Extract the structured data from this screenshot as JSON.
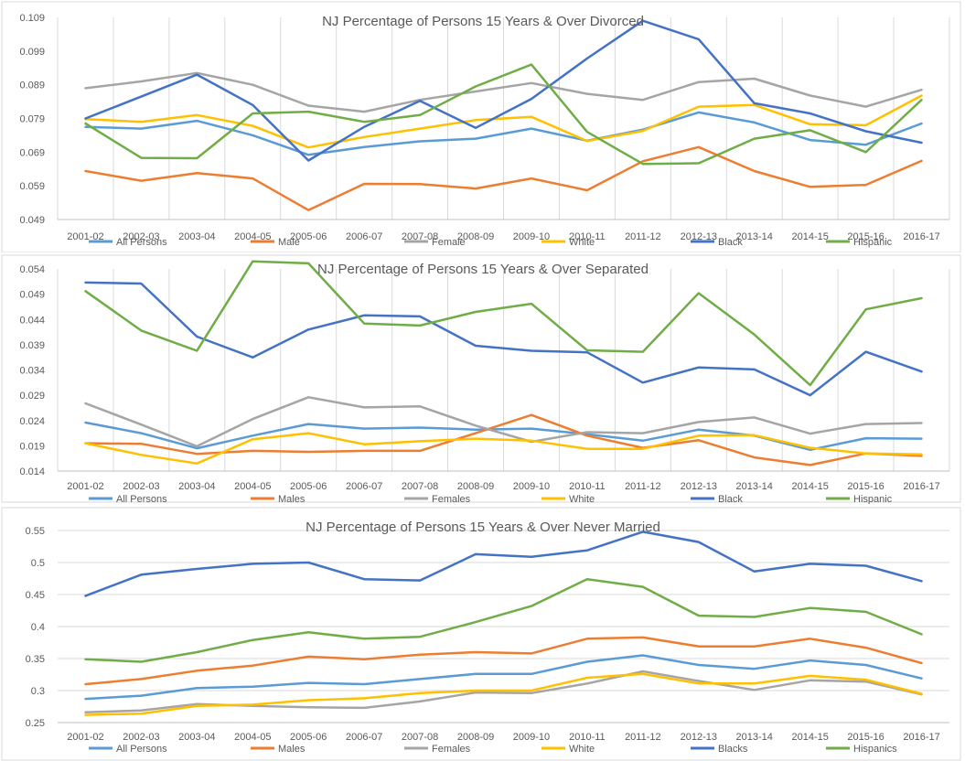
{
  "chart_data": [
    {
      "type": "line",
      "title": "NJ Percentage of Persons 15 Years & Over Divorced",
      "categories": [
        "2001-02",
        "2002-03",
        "2003-04",
        "2004-05",
        "2005-06",
        "2006-07",
        "2007-08",
        "2008-09",
        "2009-10",
        "2010-11",
        "2011-12",
        "2012-13",
        "2013-14",
        "2014-15",
        "2015-16",
        "2016-17"
      ],
      "y_ticks": [
        "0.049",
        "0.059",
        "0.069",
        "0.079",
        "0.089",
        "0.099",
        "0.109"
      ],
      "ylim": [
        0.049,
        0.109
      ],
      "grid": "vertical",
      "legend_position": "bottom",
      "series": [
        {
          "name": "All Persons",
          "color": "#5B9BD5",
          "values": [
            0.0765,
            0.076,
            0.0783,
            0.074,
            0.0682,
            0.0705,
            0.0722,
            0.073,
            0.076,
            0.0724,
            0.0757,
            0.0808,
            0.0778,
            0.0726,
            0.0712,
            0.0775
          ]
        },
        {
          "name": "Male",
          "color": "#ED7D31",
          "values": [
            0.0634,
            0.0605,
            0.0628,
            0.0612,
            0.0518,
            0.0596,
            0.0595,
            0.0582,
            0.0612,
            0.0577,
            0.0663,
            0.0705,
            0.0634,
            0.0587,
            0.0593,
            0.0664
          ]
        },
        {
          "name": "Female",
          "color": "#A5A5A5",
          "values": [
            0.088,
            0.09,
            0.0925,
            0.089,
            0.0828,
            0.081,
            0.0845,
            0.087,
            0.0895,
            0.0863,
            0.0845,
            0.0898,
            0.0908,
            0.0858,
            0.0825,
            0.0875
          ]
        },
        {
          "name": "White",
          "color": "#FFC000",
          "values": [
            0.0788,
            0.078,
            0.08,
            0.0768,
            0.0704,
            0.0735,
            0.076,
            0.0785,
            0.0795,
            0.0723,
            0.0753,
            0.0825,
            0.083,
            0.0773,
            0.077,
            0.0858
          ]
        },
        {
          "name": "Black",
          "color": "#4472C4",
          "values": [
            0.079,
            0.0855,
            0.092,
            0.083,
            0.0665,
            0.0765,
            0.0842,
            0.0762,
            0.0848,
            0.0968,
            0.108,
            0.1025,
            0.0835,
            0.0805,
            0.0752,
            0.0718
          ]
        },
        {
          "name": "Hispanic",
          "color": "#70AD47",
          "values": [
            0.0775,
            0.0673,
            0.0672,
            0.0805,
            0.081,
            0.078,
            0.08,
            0.0885,
            0.095,
            0.075,
            0.0655,
            0.0657,
            0.073,
            0.0755,
            0.069,
            0.0845
          ]
        }
      ]
    },
    {
      "type": "line",
      "title": "NJ Percentage of Persons 15 Years & Over Separated",
      "categories": [
        "2001-02",
        "2002-03",
        "2003-04",
        "2004-05",
        "2005-06",
        "2006-07",
        "2007-08",
        "2008-09",
        "2009-10",
        "2010-11",
        "2011-12",
        "2012-13",
        "2013-14",
        "2014-15",
        "2015-16",
        "2016-17"
      ],
      "y_ticks": [
        "0.014",
        "0.019",
        "0.024",
        "0.029",
        "0.034",
        "0.039",
        "0.044",
        "0.049",
        "0.054"
      ],
      "ylim": [
        0.014,
        0.054
      ],
      "grid": "vertical",
      "legend_position": "bottom",
      "series": [
        {
          "name": "All Persons",
          "color": "#5B9BD5",
          "values": [
            0.0236,
            0.0215,
            0.0185,
            0.021,
            0.0233,
            0.0224,
            0.0226,
            0.0222,
            0.0224,
            0.0213,
            0.02,
            0.0222,
            0.021,
            0.0182,
            0.0205,
            0.0204
          ]
        },
        {
          "name": "Males",
          "color": "#ED7D31",
          "values": [
            0.0195,
            0.0194,
            0.0174,
            0.018,
            0.0178,
            0.018,
            0.018,
            0.0215,
            0.0251,
            0.021,
            0.0186,
            0.0201,
            0.0167,
            0.0152,
            0.0175,
            0.017
          ]
        },
        {
          "name": "Females",
          "color": "#A5A5A5",
          "values": [
            0.0274,
            0.0232,
            0.0189,
            0.0243,
            0.0286,
            0.0266,
            0.0268,
            0.023,
            0.0198,
            0.0217,
            0.0215,
            0.0237,
            0.0246,
            0.0214,
            0.0233,
            0.0235
          ]
        },
        {
          "name": "White",
          "color": "#FFC000",
          "values": [
            0.0195,
            0.0172,
            0.0155,
            0.0203,
            0.0215,
            0.0193,
            0.0199,
            0.0204,
            0.02,
            0.0184,
            0.0184,
            0.021,
            0.0211,
            0.0186,
            0.0175,
            0.0173
          ]
        },
        {
          "name": "Black",
          "color": "#4472C4",
          "values": [
            0.0513,
            0.0511,
            0.0406,
            0.0365,
            0.042,
            0.0448,
            0.0446,
            0.0388,
            0.0378,
            0.0375,
            0.0315,
            0.0345,
            0.0341,
            0.029,
            0.0376,
            0.0337
          ]
        },
        {
          "name": "Hispanic",
          "color": "#70AD47",
          "values": [
            0.0496,
            0.0418,
            0.0378,
            0.0555,
            0.0551,
            0.0432,
            0.0428,
            0.0455,
            0.0471,
            0.0379,
            0.0376,
            0.0492,
            0.041,
            0.031,
            0.046,
            0.0482
          ]
        }
      ]
    },
    {
      "type": "line",
      "title": "NJ Percentage of Persons 15 Years & Over Never Married",
      "categories": [
        "2001-02",
        "2002-03",
        "2003-04",
        "2004-05",
        "2005-06",
        "2006-07",
        "2007-08",
        "2008-09",
        "2009-10",
        "2010-11",
        "2011-12",
        "2012-13",
        "2013-14",
        "2014-15",
        "2015-16",
        "2016-17"
      ],
      "y_ticks": [
        "0.25",
        "0.3",
        "0.35",
        "0.4",
        "0.45",
        "0.5",
        "0.55"
      ],
      "ylim": [
        0.25,
        0.55
      ],
      "grid": "horizontal",
      "legend_position": "bottom",
      "series": [
        {
          "name": "All Persons",
          "color": "#5B9BD5",
          "values": [
            0.287,
            0.292,
            0.304,
            0.306,
            0.312,
            0.31,
            0.318,
            0.326,
            0.326,
            0.345,
            0.355,
            0.34,
            0.334,
            0.347,
            0.34,
            0.319
          ]
        },
        {
          "name": "Males",
          "color": "#ED7D31",
          "values": [
            0.31,
            0.318,
            0.331,
            0.339,
            0.353,
            0.349,
            0.356,
            0.36,
            0.358,
            0.381,
            0.383,
            0.369,
            0.369,
            0.381,
            0.367,
            0.343
          ]
        },
        {
          "name": "Females",
          "color": "#A5A5A5",
          "values": [
            0.266,
            0.269,
            0.279,
            0.276,
            0.274,
            0.273,
            0.283,
            0.297,
            0.296,
            0.311,
            0.33,
            0.315,
            0.301,
            0.316,
            0.314,
            0.294
          ]
        },
        {
          "name": "White",
          "color": "#FFC000",
          "values": [
            0.262,
            0.264,
            0.276,
            0.278,
            0.285,
            0.288,
            0.296,
            0.3,
            0.3,
            0.32,
            0.326,
            0.311,
            0.311,
            0.323,
            0.317,
            0.295
          ]
        },
        {
          "name": "Blacks",
          "color": "#4472C4",
          "values": [
            0.448,
            0.481,
            0.49,
            0.498,
            0.5,
            0.474,
            0.472,
            0.513,
            0.509,
            0.519,
            0.548,
            0.532,
            0.486,
            0.498,
            0.495,
            0.471
          ]
        },
        {
          "name": "Hispanics",
          "color": "#70AD47",
          "values": [
            0.349,
            0.345,
            0.36,
            0.379,
            0.391,
            0.381,
            0.384,
            0.407,
            0.432,
            0.474,
            0.462,
            0.417,
            0.415,
            0.429,
            0.423,
            0.388
          ]
        }
      ]
    }
  ]
}
